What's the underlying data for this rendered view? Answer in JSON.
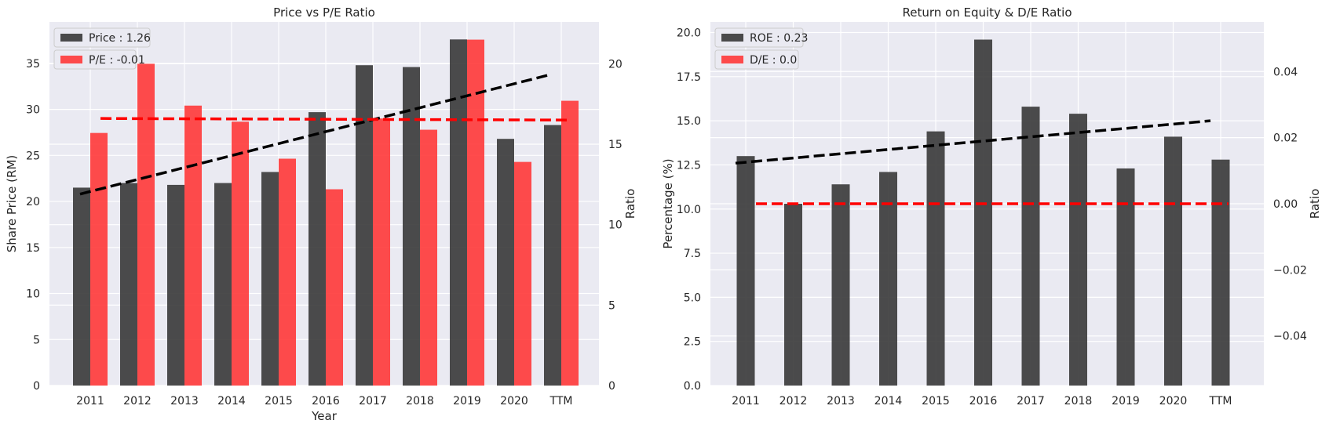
{
  "colors": {
    "background": "#eaeaf2",
    "grid": "#ffffff",
    "bar_primary": "#333333",
    "bar_secondary": "#ff3333",
    "trend_primary": "#000000",
    "trend_secondary": "#ff0000"
  },
  "chart_data": [
    {
      "type": "bar",
      "title": "Price vs P/E Ratio",
      "xlabel": "Year",
      "ylabel": "Share Price (RM)",
      "y2label": "Ratio",
      "categories": [
        "2011",
        "2012",
        "2013",
        "2014",
        "2015",
        "2016",
        "2017",
        "2018",
        "2019",
        "2020",
        "TTM"
      ],
      "ylim": [
        0,
        39.5
      ],
      "yticks": [
        "0",
        "5",
        "10",
        "15",
        "20",
        "25",
        "30",
        "35"
      ],
      "y2lim": [
        0,
        22.6
      ],
      "y2ticks": [
        "0",
        "5",
        "10",
        "15",
        "20"
      ],
      "legend_position": "top-left",
      "series": [
        {
          "name": "Price : 1.26",
          "axis": "left",
          "values": [
            21.5,
            22.0,
            21.8,
            22.0,
            23.2,
            29.7,
            34.8,
            34.6,
            37.6,
            26.8,
            28.3
          ]
        },
        {
          "name": "P/E : -0.01",
          "axis": "right",
          "values": [
            15.7,
            20.0,
            17.4,
            16.4,
            14.1,
            12.2,
            16.6,
            15.9,
            21.5,
            13.9,
            17.7
          ]
        }
      ],
      "trendlines": [
        {
          "axis": "left",
          "start": 20.8,
          "end": 33.8
        },
        {
          "axis": "right",
          "start": 16.6,
          "end": 16.5
        }
      ]
    },
    {
      "type": "bar",
      "title": "Return on Equity & D/E Ratio",
      "xlabel": "",
      "ylabel": "Percentage (%)",
      "y2label": "Ratio",
      "categories": [
        "2011",
        "2012",
        "2013",
        "2014",
        "2015",
        "2016",
        "2017",
        "2018",
        "2019",
        "2020",
        "TTM"
      ],
      "ylim": [
        0,
        20.6
      ],
      "yticks": [
        "0.0",
        "2.5",
        "5.0",
        "7.5",
        "10.0",
        "12.5",
        "15.0",
        "17.5",
        "20.0"
      ],
      "y2lim": [
        -0.055,
        0.055
      ],
      "y2ticks": [
        "−0.04",
        "−0.02",
        "0.00",
        "0.02",
        "0.04"
      ],
      "legend_position": "top-left",
      "series": [
        {
          "name": "ROE : 0.23",
          "axis": "left",
          "values": [
            13.0,
            10.3,
            11.4,
            12.1,
            14.4,
            19.6,
            15.8,
            15.4,
            12.3,
            14.1,
            12.8
          ]
        },
        {
          "name": "D/E : 0.0",
          "axis": "right",
          "values": [
            0,
            0,
            0,
            0,
            0,
            0,
            0,
            0,
            0,
            0,
            0
          ]
        }
      ],
      "trendlines": [
        {
          "axis": "left",
          "start": 12.6,
          "end": 15.0
        },
        {
          "axis": "right",
          "start": 0.0,
          "end": 0.0
        }
      ]
    }
  ]
}
